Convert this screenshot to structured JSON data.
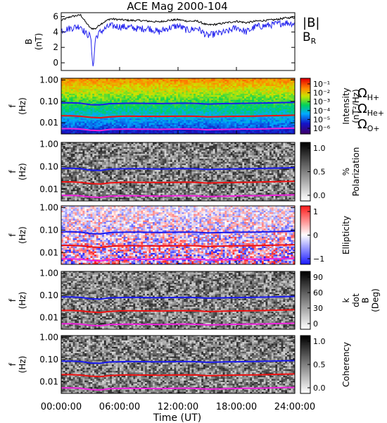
{
  "chart_data": {
    "title": "ACE Mag 2000-104",
    "xlabel": "Time (UT)",
    "x_ticks": [
      "00:00:00",
      "06:00:00",
      "12:00:00",
      "18:00:00",
      "24:00:00"
    ],
    "x_range_hours": [
      0,
      24
    ],
    "panels": [
      {
        "type": "line",
        "ylabel": "B (nT)",
        "ylim": [
          -1,
          6.5
        ],
        "y_ticks": [
          0,
          2,
          4,
          6
        ],
        "series": [
          {
            "name": "|B|",
            "color": "#000000",
            "x": [
              0,
              1,
              2,
              2.5,
              3,
              3.5,
              4,
              5,
              6,
              7,
              8,
              9,
              10,
              11,
              12,
              13,
              14,
              15,
              16,
              17,
              18,
              19,
              20,
              21,
              22,
              23,
              24
            ],
            "y": [
              5.5,
              6.0,
              6.2,
              5.3,
              4.5,
              4.4,
              5.0,
              5.7,
              5.6,
              5.5,
              5.5,
              5.4,
              5.3,
              5.5,
              5.6,
              5.4,
              5.4,
              4.9,
              5.0,
              5.2,
              5.4,
              5.2,
              5.4,
              5.5,
              5.6,
              5.8,
              5.9
            ]
          },
          {
            "name": "B_R",
            "color": "#2222ee",
            "x": [
              0,
              1,
              2,
              2.5,
              3,
              3.3,
              3.5,
              4,
              5,
              6,
              7,
              8,
              9,
              10,
              11,
              12,
              13,
              14,
              15,
              16,
              17,
              18,
              19,
              20,
              21,
              22,
              23,
              24
            ],
            "y": [
              4.2,
              4.5,
              4.8,
              3.8,
              3.5,
              -0.8,
              3.2,
              4.0,
              4.8,
              4.7,
              4.6,
              4.4,
              4.5,
              4.0,
              4.5,
              4.8,
              4.2,
              4.5,
              3.5,
              3.8,
              4.0,
              4.6,
              4.0,
              4.7,
              4.8,
              5.0,
              5.2,
              5.1
            ]
          }
        ]
      },
      {
        "type": "heatmap",
        "ylabel": "f (Hz)",
        "y_scale": "log",
        "ylim": [
          0.003,
          1.2
        ],
        "y_ticks": [
          "1.00",
          "0.10",
          "0.01"
        ],
        "colorbar_label": "Intensity (nT²/Hz)",
        "colorbar_ticks": [
          "10⁻¹",
          "10⁻²",
          "10⁻³",
          "10⁻⁴",
          "10⁻⁵",
          "10⁻⁶"
        ],
        "colorbar_style": "rainbow"
      },
      {
        "type": "heatmap",
        "ylabel": "f (Hz)",
        "y_scale": "log",
        "colorbar_label": "% Polarization",
        "colorbar_ticks": [
          "1.0",
          "0.5",
          "0.0"
        ],
        "colorbar_style": "gray"
      },
      {
        "type": "heatmap",
        "ylabel": "f (Hz)",
        "y_scale": "log",
        "colorbar_label": "Ellipticity",
        "colorbar_ticks": [
          "1",
          "0",
          "−1"
        ],
        "colorbar_style": "bwr"
      },
      {
        "type": "heatmap",
        "ylabel": "f (Hz)",
        "y_scale": "log",
        "colorbar_label": "k dot B (Deg)",
        "colorbar_ticks": [
          "90",
          "60",
          "30",
          "0"
        ],
        "colorbar_style": "gray"
      },
      {
        "type": "heatmap",
        "ylabel": "f (Hz)",
        "y_scale": "log",
        "colorbar_label": "Coherency",
        "colorbar_ticks": [
          "1.0",
          "0.5",
          "0.0"
        ],
        "colorbar_style": "gray"
      }
    ],
    "gyro_lines": [
      {
        "name": "H+",
        "color": "#1a1aee",
        "freq_hz": [
          0.085,
          0.085,
          0.082,
          0.07,
          0.068,
          0.078,
          0.08,
          0.082,
          0.081,
          0.08,
          0.079,
          0.08,
          0.081,
          0.082,
          0.08,
          0.075,
          0.077,
          0.079,
          0.08,
          0.081,
          0.082,
          0.084,
          0.086,
          0.088,
          0.09
        ]
      },
      {
        "name": "He+",
        "color": "#ee1111",
        "freq_hz": [
          0.021,
          0.021,
          0.02,
          0.018,
          0.017,
          0.019,
          0.02,
          0.0205,
          0.02,
          0.02,
          0.0198,
          0.02,
          0.0202,
          0.0205,
          0.02,
          0.0188,
          0.0192,
          0.0198,
          0.02,
          0.0202,
          0.0205,
          0.021,
          0.0215,
          0.022,
          0.0225
        ]
      },
      {
        "name": "O+",
        "color": "#ee22dd",
        "freq_hz": [
          0.0053,
          0.0053,
          0.0051,
          0.0045,
          0.0043,
          0.0049,
          0.005,
          0.0051,
          0.005,
          0.005,
          0.0049,
          0.005,
          0.0051,
          0.0051,
          0.005,
          0.0047,
          0.0048,
          0.0049,
          0.005,
          0.0051,
          0.0051,
          0.0052,
          0.0054,
          0.0055,
          0.0056
        ]
      }
    ],
    "legend": {
      "top_panel": [
        {
          "label": "|B|",
          "color": "#000000"
        },
        {
          "label": "B",
          "sub": "R",
          "color": "#2222ee"
        }
      ],
      "spectrogram": [
        {
          "label": "Ω",
          "sub": "H+",
          "color": "#1a1aee"
        },
        {
          "label": "Ω",
          "sub": "He+",
          "color": "#ee1111"
        },
        {
          "label": "Ω",
          "sub": "O+",
          "color": "#ee22dd"
        }
      ]
    }
  }
}
